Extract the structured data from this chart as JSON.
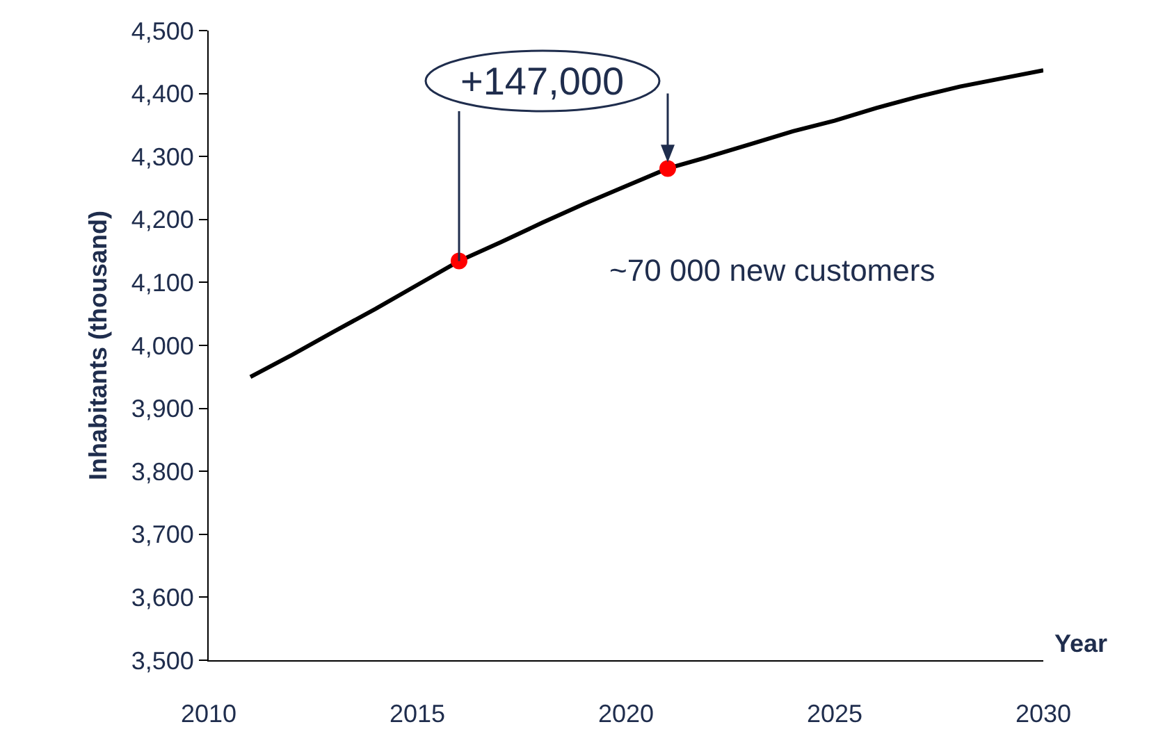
{
  "chart_data": {
    "type": "line",
    "xlabel": "Year",
    "ylabel": "Inhabitants (thousand)",
    "x": [
      2011,
      2012,
      2013,
      2014,
      2015,
      2016,
      2017,
      2018,
      2019,
      2020,
      2021,
      2022,
      2023,
      2024,
      2025,
      2026,
      2027,
      2028,
      2029,
      2030
    ],
    "series": [
      {
        "color": "#000000",
        "values": [
          3950,
          3985,
          4022,
          4058,
          4096,
          4134,
          4164,
          4195,
          4225,
          4253,
          4281,
          4300,
          4320,
          4340,
          4357,
          4377,
          4395,
          4411,
          4424,
          4437
        ]
      },
      {
        "type": "scatter",
        "x": [
          2016,
          2021
        ],
        "color": "#ff0000",
        "marker": "circle",
        "values": [
          4134,
          4281
        ]
      }
    ],
    "xlim": [
      2010,
      2030
    ],
    "xticks": [
      2010,
      2015,
      2020,
      2025,
      2030
    ],
    "ylim": [
      3500,
      4500
    ],
    "yticks": [
      {
        "value": 3500,
        "label": "3,500"
      },
      {
        "value": 3600,
        "label": "3,600"
      },
      {
        "value": 3700,
        "label": "3,700"
      },
      {
        "value": 3800,
        "label": "3,800"
      },
      {
        "value": 3900,
        "label": "3,900"
      },
      {
        "value": 4000,
        "label": "4,000"
      },
      {
        "value": 4100,
        "label": "4,100"
      },
      {
        "value": 4200,
        "label": "4,200"
      },
      {
        "value": 4300,
        "label": "4,300"
      },
      {
        "value": 4400,
        "label": "4,400"
      },
      {
        "value": 4500,
        "label": "4,500"
      }
    ],
    "marker": "none",
    "annotations": [
      {
        "text": "+147,000",
        "x": 2021,
        "y": 4281
      },
      "~70 000 new customers"
    ]
  }
}
